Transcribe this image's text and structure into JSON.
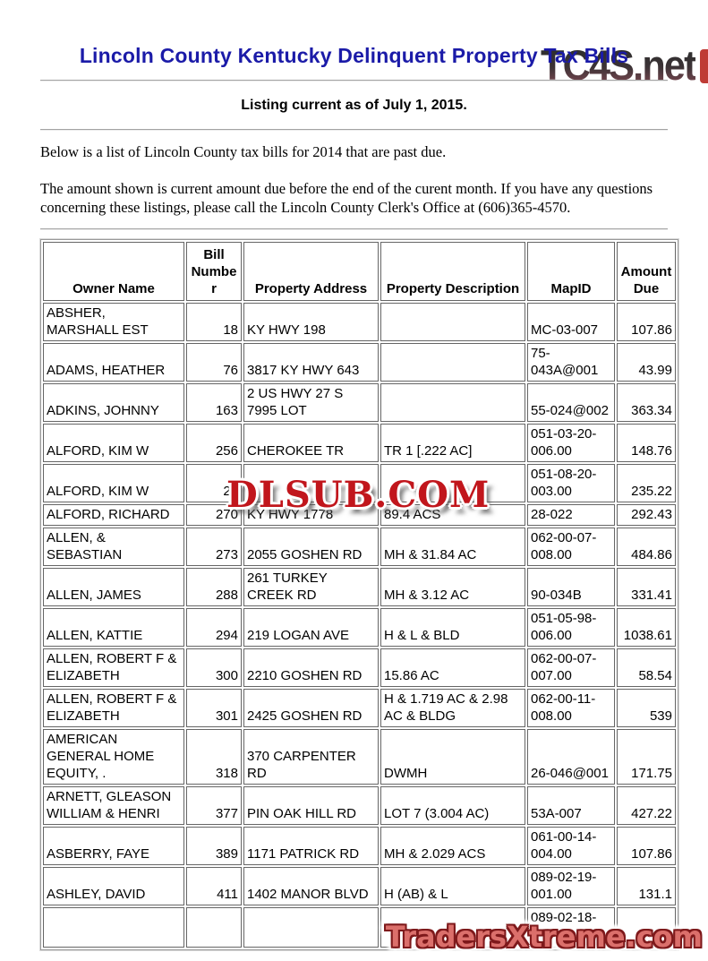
{
  "branding": {
    "site_logo": "TC4S.net",
    "watermark_center": "DLSUB.COM",
    "watermark_bottom": "TradersXtreme.com"
  },
  "header": {
    "title": "Lincoln County Kentucky Delinquent Property Tax Bills",
    "listing_note": "Listing current as of July 1, 2015."
  },
  "intro": {
    "p1": "Below is a list of Lincoln County tax bills for 2014 that are past due.",
    "p2": "The amount shown is current amount due before the end of the curent month. If you have any questions concerning these listings, please call the Lincoln County Clerk's Office at (606)365-4570."
  },
  "colors": {
    "title_blue": "#1b1ba8",
    "center_watermark_red": "#c1161c",
    "bottom_watermark_fill": "#db6f6b",
    "bottom_watermark_outline": "#7e191b",
    "logo_gradient_top": "#2e2e2e",
    "logo_gradient_bottom": "#71444c"
  },
  "table": {
    "columns": [
      "Owner Name",
      "Bill Number",
      "Property Address",
      "Property Description",
      "MapID",
      "Amount Due"
    ],
    "rows": [
      {
        "owner": "ABSHER, MARSHALL EST",
        "bill": "18",
        "address": "KY HWY 198",
        "description": "",
        "map_id": "MC-03-007",
        "amount": "107.86"
      },
      {
        "owner": "ADAMS, HEATHER",
        "bill": "76",
        "address": "3817 KY HWY 643",
        "description": "",
        "map_id": "75-043A@001",
        "amount": "43.99"
      },
      {
        "owner": "ADKINS, JOHNNY",
        "bill": "163",
        "address": "2 US HWY 27 S 7995 LOT",
        "description": "",
        "map_id": "55-024@002",
        "amount": "363.34"
      },
      {
        "owner": "ALFORD, KIM W",
        "bill": "256",
        "address": "CHEROKEE TR",
        "description": "TR 1 [.222 AC]",
        "map_id": "051-03-20-006.00",
        "amount": "148.76"
      },
      {
        "owner": "ALFORD, KIM W",
        "bill": "25",
        "address": "",
        "description": "",
        "map_id": "051-08-20-003.00",
        "amount": "235.22"
      },
      {
        "owner": "ALFORD, RICHARD",
        "bill": "270",
        "address": "KY HWY 1778",
        "description": "89.4 ACS",
        "map_id": "28-022",
        "amount": "292.43"
      },
      {
        "owner": "ALLEN, & SEBASTIAN",
        "bill": "273",
        "address": "2055 GOSHEN RD",
        "description": "MH & 31.84 AC",
        "map_id": "062-00-07-008.00",
        "amount": "484.86"
      },
      {
        "owner": "ALLEN, JAMES",
        "bill": "288",
        "address": "261 TURKEY CREEK RD",
        "description": "MH & 3.12 AC",
        "map_id": "90-034B",
        "amount": "331.41"
      },
      {
        "owner": "ALLEN, KATTIE",
        "bill": "294",
        "address": "219 LOGAN AVE",
        "description": "H & L & BLD",
        "map_id": "051-05-98-006.00",
        "amount": "1038.61"
      },
      {
        "owner": "ALLEN, ROBERT F & ELIZABETH",
        "bill": "300",
        "address": "2210 GOSHEN RD",
        "description": "15.86 AC",
        "map_id": "062-00-07-007.00",
        "amount": "58.54"
      },
      {
        "owner": "ALLEN, ROBERT F & ELIZABETH",
        "bill": "301",
        "address": "2425 GOSHEN RD",
        "description": "H & 1.719 AC & 2.98 AC & BLDG",
        "map_id": "062-00-11-008.00",
        "amount": "539"
      },
      {
        "owner": "AMERICAN GENERAL HOME EQUITY, .",
        "bill": "318",
        "address": "370 CARPENTER RD",
        "description": "DWMH",
        "map_id": "26-046@001",
        "amount": "171.75"
      },
      {
        "owner": "ARNETT, GLEASON WILLIAM & HENRI",
        "bill": "377",
        "address": "PIN OAK HILL RD",
        "description": "LOT 7 (3.004 AC)",
        "map_id": "53A-007",
        "amount": "427.22"
      },
      {
        "owner": "ASBERRY, FAYE",
        "bill": "389",
        "address": "1171 PATRICK RD",
        "description": "MH & 2.029 ACS",
        "map_id": "061-00-14-004.00",
        "amount": "107.86"
      },
      {
        "owner": "ASHLEY, DAVID",
        "bill": "411",
        "address": "1402 MANOR BLVD",
        "description": "H (AB) & L",
        "map_id": "089-02-19-001.00",
        "amount": "131.1"
      },
      {
        "owner": "",
        "bill": "",
        "address": "",
        "description": "",
        "map_id": "089-02-18-",
        "amount": ""
      }
    ]
  }
}
